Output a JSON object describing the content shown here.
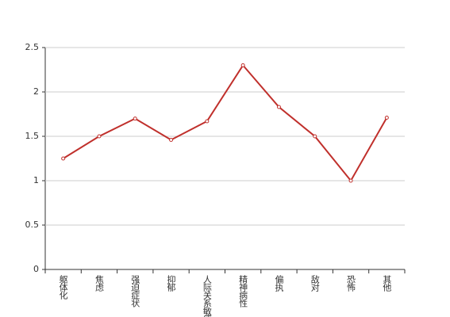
{
  "chart_data": {
    "type": "line",
    "categories": [
      "躯体化",
      "焦虑",
      "强迫症状",
      "抑郁",
      "人际关系敏感",
      "精神病性",
      "偏执",
      "敌对",
      "恐怖",
      "其他"
    ],
    "series": [
      {
        "color": "#c0302c",
        "values": [
          1.25,
          1.5,
          1.7,
          1.46,
          1.67,
          2.3,
          1.83,
          1.5,
          1.0,
          1.71
        ]
      }
    ],
    "ylim": [
      0,
      2.5
    ],
    "yticks": [
      0,
      {
        "value": 0.5,
        "label": "0.5"
      },
      1,
      {
        "value": 1.5,
        "label": "1.5"
      },
      2,
      {
        "value": 2.5,
        "label": "2.5"
      }
    ],
    "grid": true
  }
}
